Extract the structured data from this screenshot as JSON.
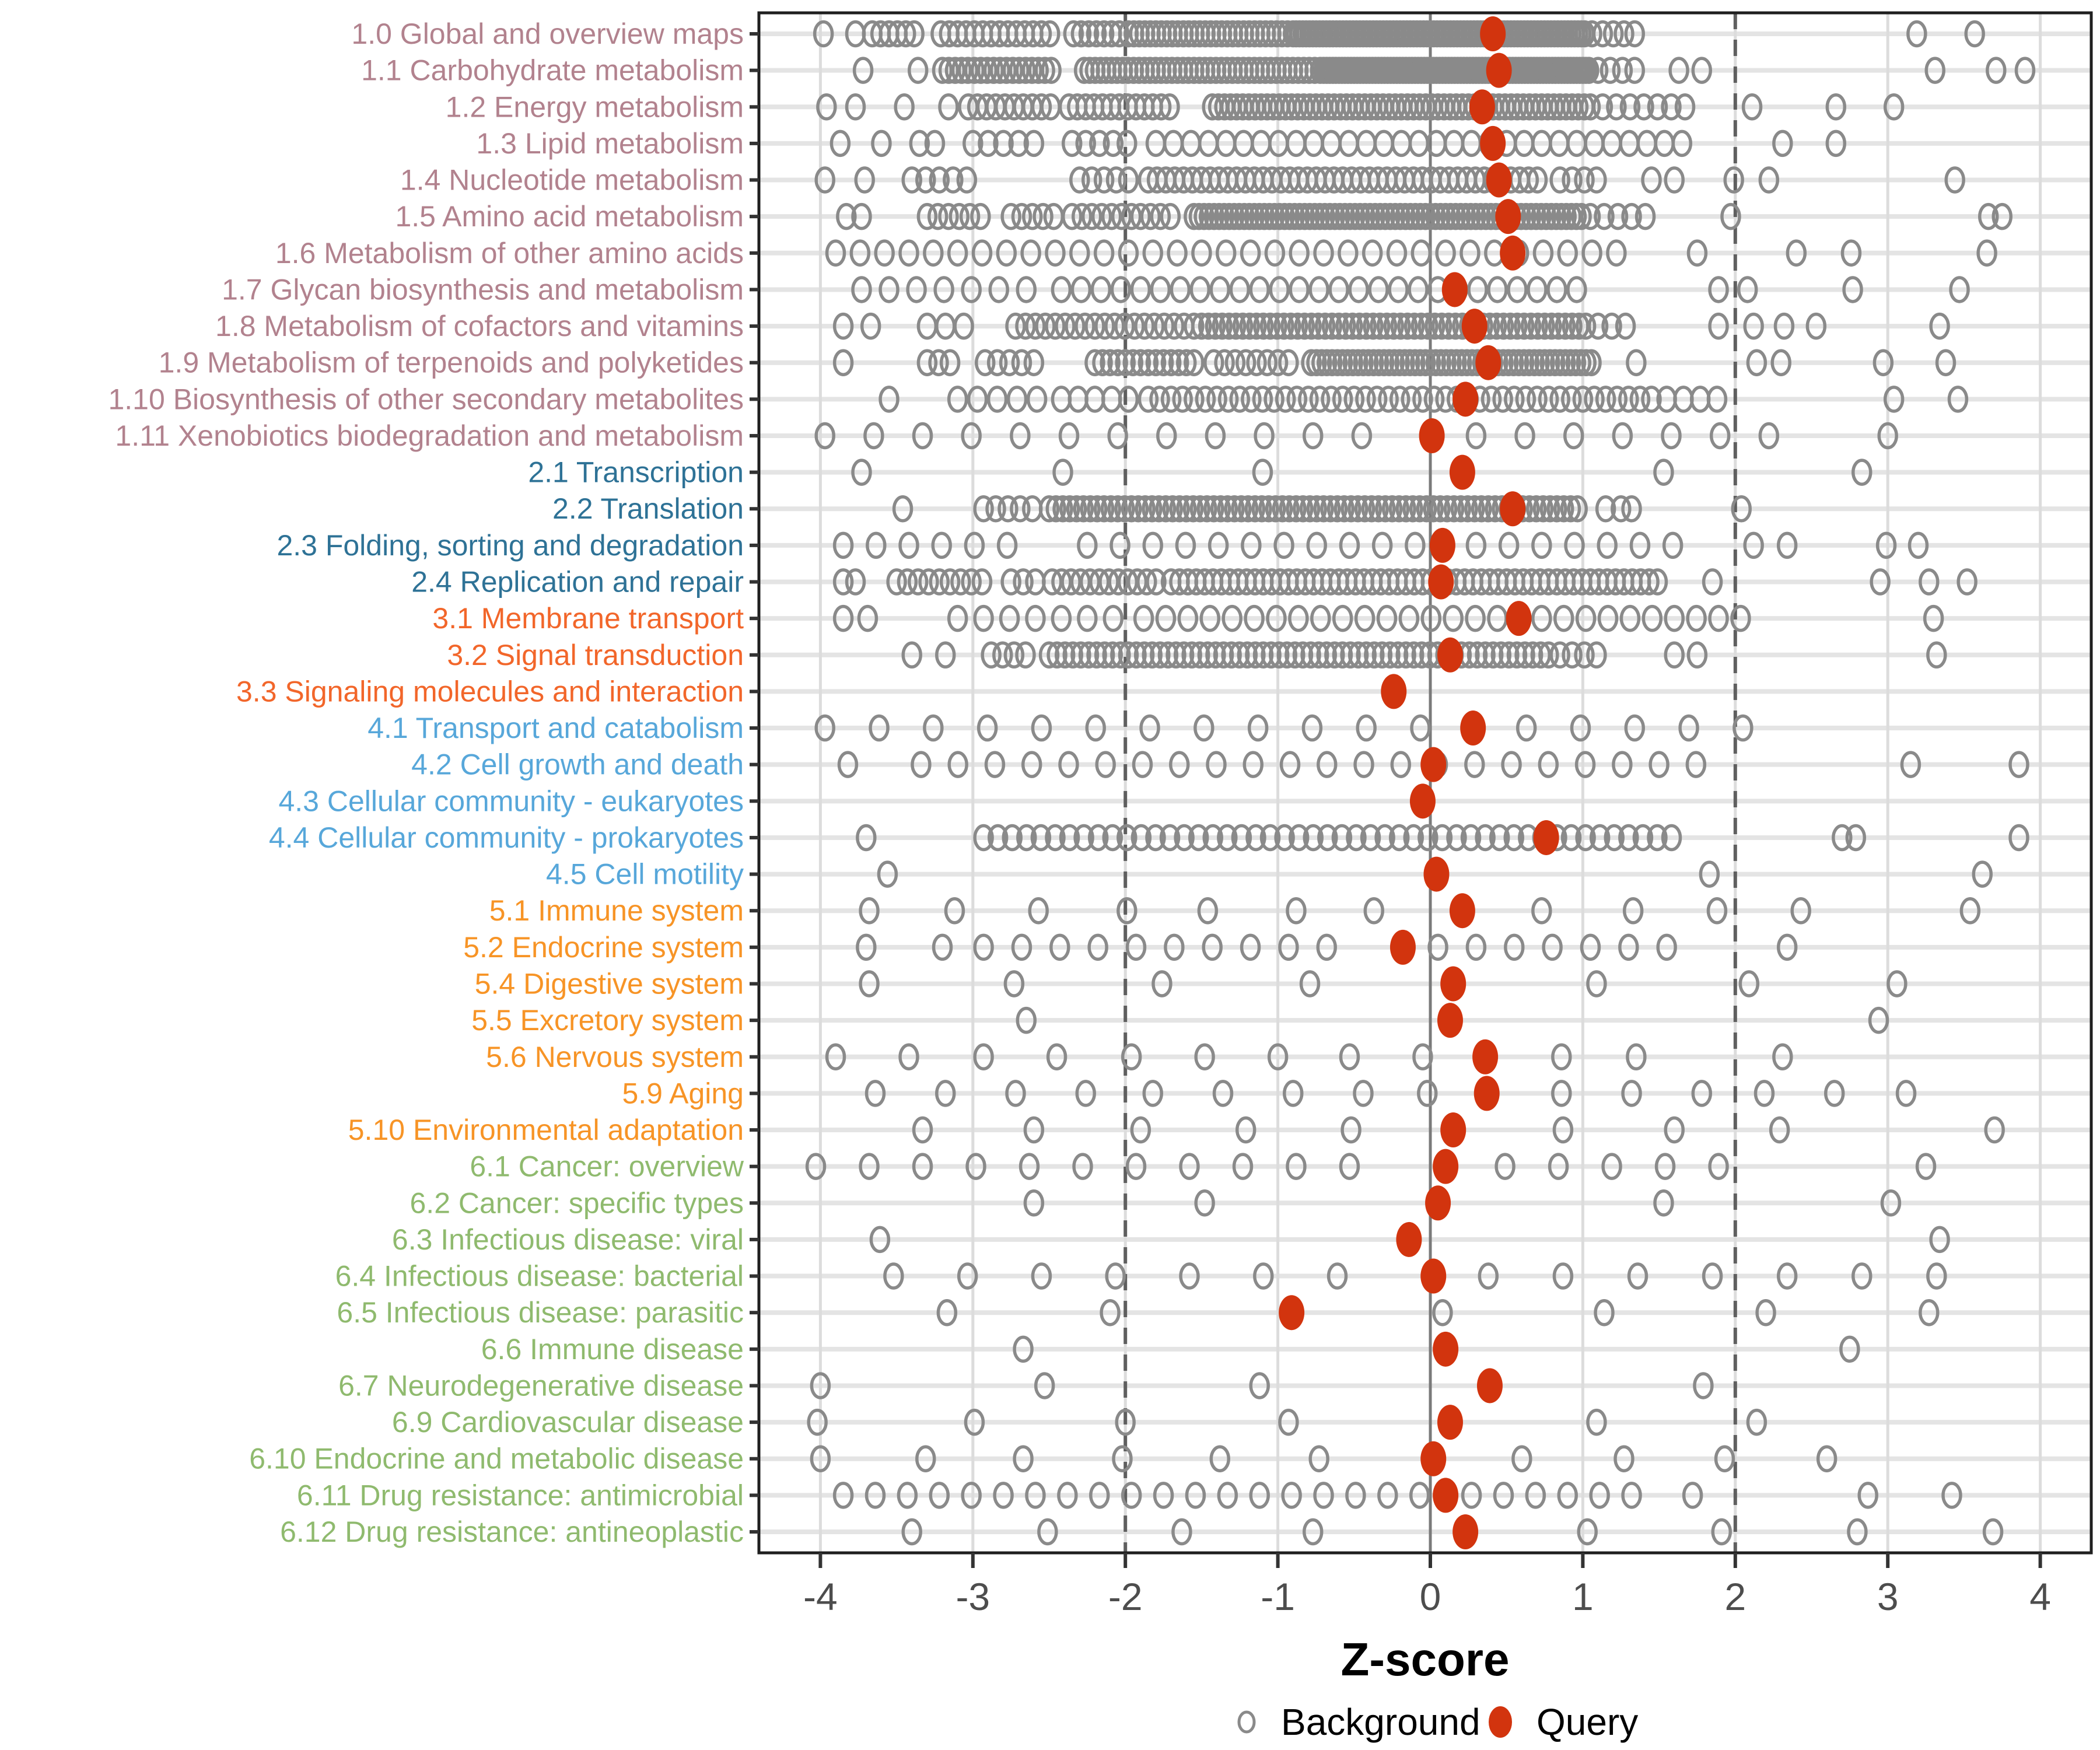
{
  "chart_data": {
    "type": "scatter",
    "title": "",
    "xlabel": "Z-score",
    "x_ticks": [
      "-4",
      "-3",
      "-2",
      "-1",
      "0",
      "1",
      "2",
      "3",
      "4"
    ],
    "x_tick_values": [
      -4,
      -3,
      -2,
      -1,
      0,
      1,
      2,
      3,
      4
    ],
    "xlim": [
      -4.4,
      4.35
    ],
    "grid": true,
    "reference_lines": {
      "solid_at": 0,
      "dashed_at": [
        -2,
        2
      ]
    },
    "legend_position": "bottom",
    "legend": {
      "background_label": "Background",
      "query_label": "Query"
    },
    "group_colors": {
      "metabolism": "#b2828e",
      "genetic": "#2e7296",
      "environmental": "#f2662a",
      "cellular": "#57a7da",
      "organismal": "#f79426",
      "disease": "#8fba6e"
    },
    "point_colors": {
      "background_stroke": "#8a8a8a",
      "query_fill": "#d2340e"
    },
    "rows": [
      {
        "label": "1.0 Global and overview maps",
        "group": "metabolism",
        "query": 0.41,
        "bg_runs": [
          [
            -3.66,
            -3.38,
            0.055
          ],
          [
            -3.21,
            -2.48,
            0.055
          ],
          [
            -2.34,
            -2.02,
            0.05
          ],
          [
            -1.98,
            -0.9,
            0.036
          ],
          [
            -0.88,
            1.02,
            0.022
          ],
          [
            1.06,
            1.35,
            0.07
          ]
        ],
        "bg_points": [
          -3.98,
          -3.77,
          3.19,
          3.57
        ]
      },
      {
        "label": "1.1 Carbohydrate metabolism",
        "group": "metabolism",
        "query": 0.45,
        "bg_runs": [
          [
            -3.2,
            -2.48,
            0.042
          ],
          [
            -2.27,
            -0.72,
            0.036
          ],
          [
            -0.7,
            1.05,
            0.02
          ],
          [
            1.1,
            1.35,
            0.08
          ]
        ],
        "bg_points": [
          -3.72,
          -3.36,
          1.63,
          1.78,
          3.31,
          3.71,
          3.9
        ]
      },
      {
        "label": "1.2 Energy metabolism",
        "group": "metabolism",
        "query": 0.34,
        "bg_runs": [
          [
            -3.03,
            -2.46,
            0.06
          ],
          [
            -2.37,
            -1.7,
            0.055
          ],
          [
            -1.43,
            1.07,
            0.04
          ],
          [
            1.13,
            1.7,
            0.09
          ]
        ],
        "bg_points": [
          -3.96,
          -3.77,
          -3.45,
          -3.16,
          2.11,
          2.66,
          3.04
        ]
      },
      {
        "label": "1.3 Lipid metabolism",
        "group": "metabolism",
        "query": 0.41,
        "bg_runs": [
          [
            -3.0,
            -2.6,
            0.1
          ],
          [
            -2.35,
            -1.95,
            0.09
          ],
          [
            -1.8,
            1.75,
            0.115
          ]
        ],
        "bg_points": [
          -3.87,
          -3.6,
          -3.35,
          -3.25,
          2.31,
          2.66
        ]
      },
      {
        "label": "1.4 Nucleotide metabolism",
        "group": "metabolism",
        "query": 0.45,
        "bg_runs": [
          [
            -3.4,
            -3.0,
            0.09
          ],
          [
            -2.3,
            -1.95,
            0.08
          ],
          [
            -1.85,
            0.75,
            0.058
          ],
          [
            0.85,
            1.1,
            0.08
          ]
        ],
        "bg_points": [
          -3.97,
          -3.71,
          1.45,
          1.6,
          1.99,
          2.22,
          3.44
        ]
      },
      {
        "label": "1.5 Amino acid metabolism",
        "group": "metabolism",
        "query": 0.51,
        "bg_runs": [
          [
            -3.3,
            -2.9,
            0.07
          ],
          [
            -2.75,
            -2.45,
            0.07
          ],
          [
            -2.35,
            -1.95,
            0.065
          ],
          [
            -1.9,
            -1.65,
            0.065
          ],
          [
            -1.55,
            1.0,
            0.033
          ],
          [
            1.05,
            1.45,
            0.09
          ]
        ],
        "bg_points": [
          -3.83,
          -3.73,
          1.97,
          3.66,
          3.75
        ]
      },
      {
        "label": "1.6 Metabolism of other amino acids",
        "group": "metabolism",
        "query": 0.54,
        "bg_runs": [
          [
            -3.9,
            1.25,
            0.16
          ]
        ],
        "bg_points": [
          1.75,
          2.4,
          2.76,
          3.65
        ]
      },
      {
        "label": "1.7 Glycan biosynthesis and metabolism",
        "group": "metabolism",
        "query": 0.16,
        "bg_runs": [
          [
            -3.73,
            -2.6,
            0.18
          ],
          [
            -2.42,
            1.05,
            0.13
          ]
        ],
        "bg_points": [
          1.89,
          2.08,
          2.77,
          3.47
        ]
      },
      {
        "label": "1.8 Metabolism of cofactors and vitamins",
        "group": "metabolism",
        "query": 0.29,
        "bg_runs": [
          [
            -3.3,
            -3.05,
            0.12
          ],
          [
            -2.72,
            -1.55,
            0.065
          ],
          [
            -1.5,
            1.05,
            0.045
          ],
          [
            1.1,
            1.35,
            0.09
          ]
        ],
        "bg_points": [
          -3.85,
          -3.67,
          1.89,
          2.12,
          2.32,
          2.53,
          3.34
        ]
      },
      {
        "label": "1.9 Metabolism of terpenoids and polyketides",
        "group": "metabolism",
        "query": 0.38,
        "bg_runs": [
          [
            -3.3,
            -3.15,
            0.075
          ],
          [
            -2.92,
            -2.55,
            0.08
          ],
          [
            -2.2,
            -1.55,
            0.05
          ],
          [
            -1.42,
            -0.92,
            0.07
          ],
          [
            -0.78,
            1.08,
            0.034
          ]
        ],
        "bg_points": [
          -3.85,
          1.35,
          2.14,
          2.3,
          2.97,
          3.38
        ]
      },
      {
        "label": "1.10 Biosynthesis of other secondary metabolites",
        "group": "metabolism",
        "query": 0.23,
        "bg_runs": [
          [
            -3.1,
            -2.55,
            0.13
          ],
          [
            -2.42,
            -1.95,
            0.11
          ],
          [
            -1.85,
            1.45,
            0.075
          ],
          [
            1.55,
            1.9,
            0.11
          ]
        ],
        "bg_points": [
          -3.55,
          3.04,
          3.46
        ]
      },
      {
        "label": "1.11 Xenobiotics biodegradation and metabolism",
        "group": "metabolism",
        "query": 0.01,
        "bg_runs": [
          [
            -3.97,
            -0.15,
            0.32
          ],
          [
            0.3,
            2.4,
            0.32
          ]
        ],
        "bg_points": [
          3.0
        ]
      },
      {
        "label": "2.1 Transcription",
        "group": "genetic",
        "query": 0.21,
        "bg_runs": [],
        "bg_points": [
          -3.73,
          -2.41,
          -1.1,
          1.53,
          2.83
        ]
      },
      {
        "label": "2.2 Translation",
        "group": "genetic",
        "query": 0.54,
        "bg_runs": [
          [
            -2.93,
            -2.6,
            0.08
          ],
          [
            -2.5,
            0.98,
            0.045
          ]
        ],
        "bg_points": [
          -3.46,
          1.15,
          1.25,
          1.32,
          2.04
        ]
      },
      {
        "label": "2.3 Folding, sorting and degradation",
        "group": "genetic",
        "query": 0.08,
        "bg_runs": [
          [
            -3.85,
            -2.6,
            0.215
          ],
          [
            -2.25,
            -0.05,
            0.215
          ],
          [
            0.3,
            1.8,
            0.215
          ]
        ],
        "bg_points": [
          2.12,
          2.34,
          2.99,
          3.2
        ]
      },
      {
        "label": "2.4 Replication and repair",
        "group": "genetic",
        "query": 0.07,
        "bg_runs": [
          [
            -3.85,
            -3.7,
            0.08
          ],
          [
            -3.5,
            -2.9,
            0.07
          ],
          [
            -2.75,
            -2.58,
            0.08
          ],
          [
            -2.48,
            -1.78,
            0.062
          ],
          [
            -1.7,
            1.52,
            0.055
          ]
        ],
        "bg_points": [
          1.85,
          2.95,
          3.27,
          3.52
        ]
      },
      {
        "label": "3.1 Membrane transport",
        "group": "environmental",
        "query": 0.58,
        "bg_runs": [
          [
            -3.85,
            -3.55,
            0.16
          ],
          [
            -3.1,
            -2.0,
            0.17
          ],
          [
            -1.88,
            2.1,
            0.145
          ]
        ],
        "bg_points": [
          3.3
        ]
      },
      {
        "label": "3.2 Signal transduction",
        "group": "environmental",
        "query": 0.13,
        "bg_runs": [
          [
            -2.88,
            -2.6,
            0.075
          ],
          [
            -2.5,
            0.78,
            0.052
          ],
          [
            0.85,
            1.1,
            0.08
          ]
        ],
        "bg_points": [
          -3.4,
          -3.18,
          1.6,
          1.75,
          3.32
        ]
      },
      {
        "label": "3.3 Signaling molecules and interaction",
        "group": "environmental",
        "query": -0.24,
        "bg_runs": [],
        "bg_points": []
      },
      {
        "label": "4.1 Transport and catabolism",
        "group": "cellular",
        "query": 0.28,
        "bg_runs": [
          [
            -3.97,
            -0.06,
            0.355
          ],
          [
            0.63,
            2.4,
            0.355
          ]
        ],
        "bg_points": []
      },
      {
        "label": "4.2 Cell growth and death",
        "group": "cellular",
        "query": 0.02,
        "bg_runs": [
          [
            -3.34,
            1.75,
            0.242
          ]
        ],
        "bg_points": [
          -3.82,
          3.15,
          3.86
        ]
      },
      {
        "label": "4.3 Cellular community - eukaryotes",
        "group": "cellular",
        "query": -0.05,
        "bg_runs": [],
        "bg_points": []
      },
      {
        "label": "4.4 Cellular community - prokaryotes",
        "group": "cellular",
        "query": 0.76,
        "bg_runs": [
          [
            -2.93,
            1.66,
            0.094
          ]
        ],
        "bg_points": [
          -3.7,
          2.7,
          2.79,
          3.86
        ]
      },
      {
        "label": "4.5 Cell motility",
        "group": "cellular",
        "query": 0.04,
        "bg_runs": [],
        "bg_points": [
          -3.56,
          1.83,
          3.62
        ]
      },
      {
        "label": "5.1 Immune system",
        "group": "organismal",
        "query": 0.21,
        "bg_runs": [],
        "bg_points": [
          -3.68,
          -3.12,
          -2.57,
          -1.99,
          -1.46,
          -0.88,
          -0.37,
          0.73,
          1.33,
          1.88,
          2.43,
          3.54
        ]
      },
      {
        "label": "5.2 Endocrine system",
        "group": "organismal",
        "query": -0.18,
        "bg_runs": [
          [
            -2.93,
            -0.44,
            0.25
          ],
          [
            0.05,
            1.58,
            0.25
          ]
        ],
        "bg_points": [
          -3.7,
          -3.2,
          2.34
        ]
      },
      {
        "label": "5.4 Digestive system",
        "group": "organismal",
        "query": 0.15,
        "bg_runs": [],
        "bg_points": [
          -3.68,
          -2.73,
          -1.76,
          -0.79,
          1.09,
          2.09,
          3.06
        ]
      },
      {
        "label": "5.5 Excretory system",
        "group": "organismal",
        "query": 0.13,
        "bg_runs": [],
        "bg_points": [
          -2.65,
          2.94
        ]
      },
      {
        "label": "5.6 Nervous system",
        "group": "organismal",
        "query": 0.36,
        "bg_runs": [],
        "bg_points": [
          -3.9,
          -3.42,
          -2.93,
          -2.45,
          -1.96,
          -1.48,
          -1.0,
          -0.53,
          -0.05,
          0.86,
          1.35,
          2.31
        ]
      },
      {
        "label": "5.9 Aging",
        "group": "organismal",
        "query": 0.37,
        "bg_runs": [],
        "bg_points": [
          -3.64,
          -3.18,
          -2.72,
          -2.26,
          -1.82,
          -1.36,
          -0.9,
          -0.44,
          -0.02,
          0.86,
          1.32,
          1.78,
          2.19,
          2.65,
          3.12
        ]
      },
      {
        "label": "5.10 Environmental adaptation",
        "group": "organismal",
        "query": 0.15,
        "bg_runs": [],
        "bg_points": [
          -3.33,
          -2.6,
          -1.9,
          -1.21,
          -0.52,
          0.87,
          1.6,
          2.29,
          3.7
        ]
      },
      {
        "label": "6.1 Cancer: overview",
        "group": "disease",
        "query": 0.1,
        "bg_runs": [
          [
            -4.03,
            -0.2,
            0.35
          ],
          [
            0.49,
            2.22,
            0.35
          ]
        ],
        "bg_points": [
          3.25
        ]
      },
      {
        "label": "6.2 Cancer: specific types",
        "group": "disease",
        "query": 0.05,
        "bg_runs": [],
        "bg_points": [
          -2.6,
          -1.48,
          1.53,
          3.02
        ]
      },
      {
        "label": "6.3 Infectious disease: viral",
        "group": "disease",
        "query": -0.14,
        "bg_runs": [],
        "bg_points": [
          -3.61,
          3.34
        ]
      },
      {
        "label": "6.4 Infectious disease: bacterial",
        "group": "disease",
        "query": 0.02,
        "bg_runs": [
          [
            -3.52,
            -0.61,
            0.485
          ],
          [
            0.38,
            3.8,
            0.49
          ]
        ],
        "bg_points": []
      },
      {
        "label": "6.5 Infectious disease: parasitic",
        "group": "disease",
        "query": -0.91,
        "bg_runs": [],
        "bg_points": [
          -3.17,
          -2.1,
          0.08,
          1.14,
          2.2,
          3.27
        ]
      },
      {
        "label": "6.6 Immune disease",
        "group": "disease",
        "query": 0.1,
        "bg_runs": [],
        "bg_points": [
          -2.67,
          2.75
        ]
      },
      {
        "label": "6.7 Neurodegenerative disease",
        "group": "disease",
        "query": 0.39,
        "bg_runs": [],
        "bg_points": [
          -4.0,
          -2.53,
          -1.12,
          1.79
        ]
      },
      {
        "label": "6.9 Cardiovascular disease",
        "group": "disease",
        "query": 0.13,
        "bg_runs": [],
        "bg_points": [
          -4.02,
          -2.99,
          -2.0,
          -0.93,
          1.09,
          2.14
        ]
      },
      {
        "label": "6.10 Endocrine and metabolic disease",
        "group": "disease",
        "query": 0.02,
        "bg_runs": [],
        "bg_points": [
          -4.0,
          -3.31,
          -2.67,
          -2.02,
          -1.38,
          -0.73,
          0.6,
          1.27,
          1.93,
          2.6
        ]
      },
      {
        "label": "6.11 Drug resistance: antimicrobial",
        "group": "disease",
        "query": 0.1,
        "bg_runs": [
          [
            -3.85,
            -0.05,
            0.21
          ],
          [
            0.27,
            1.44,
            0.21
          ]
        ],
        "bg_points": [
          1.72,
          2.87,
          3.42
        ]
      },
      {
        "label": "6.12 Drug resistance: antineoplastic",
        "group": "disease",
        "query": 0.23,
        "bg_runs": [],
        "bg_points": [
          -3.4,
          -2.51,
          -1.63,
          -0.77,
          1.03,
          1.91,
          2.8,
          3.69
        ]
      }
    ]
  }
}
